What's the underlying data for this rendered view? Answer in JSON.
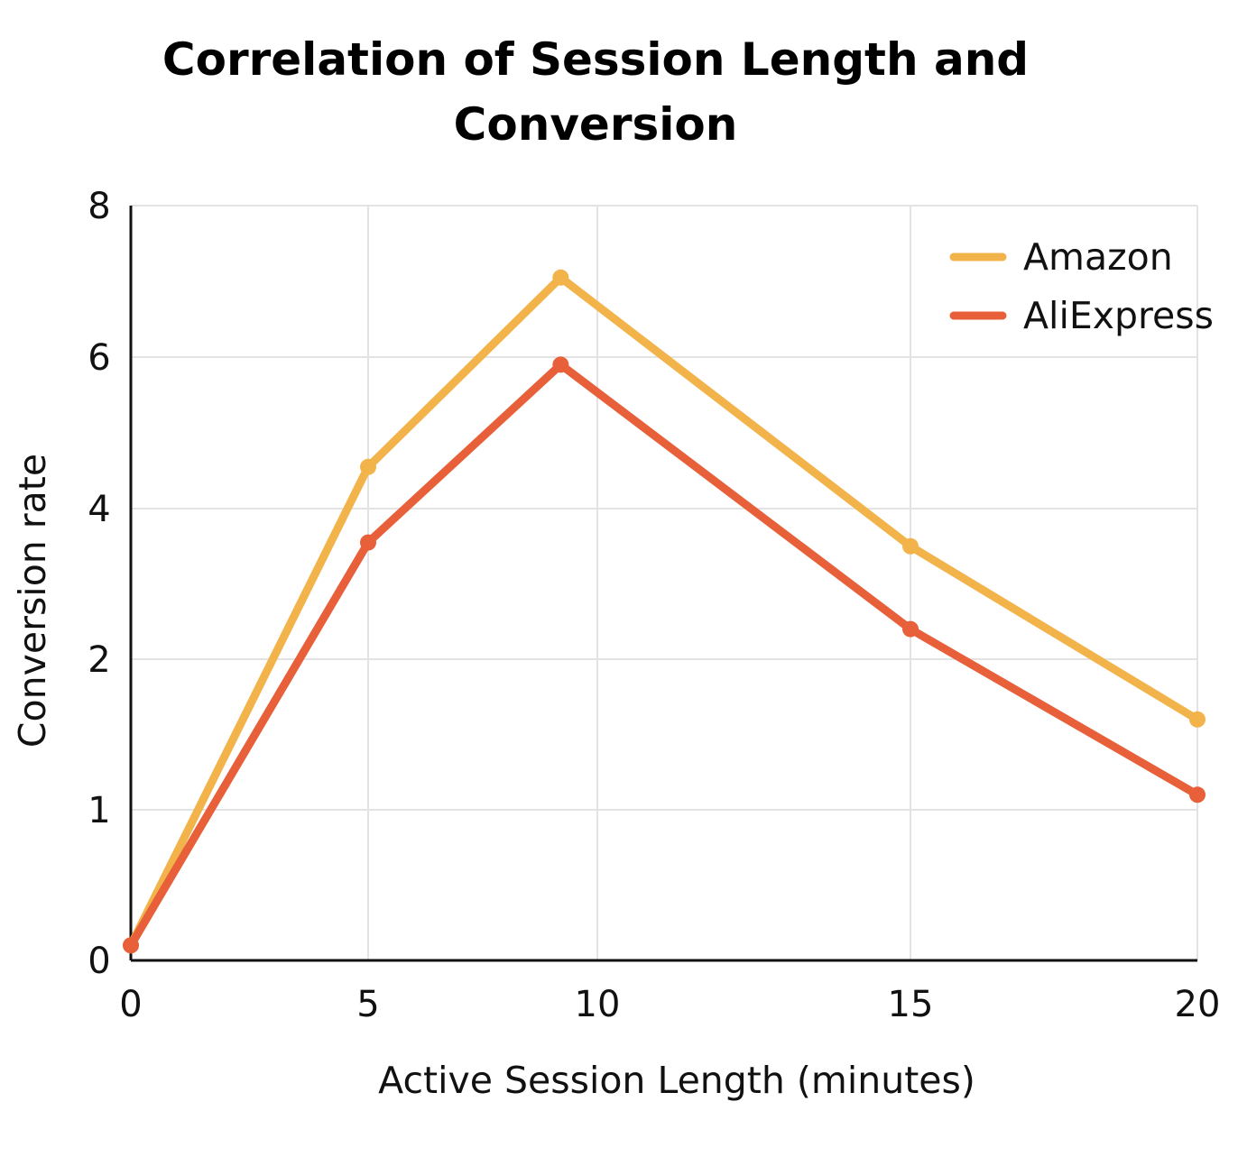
{
  "chart_data": {
    "type": "line",
    "title_lines": [
      "Correlation of Session Length and",
      "Conversion"
    ],
    "xlabel": "Active Session Length (minutes)",
    "ylabel": "Conversion rate",
    "x_ticks": [
      0,
      5,
      10,
      15,
      20
    ],
    "y_ticks": [
      "0",
      "1",
      "2",
      "4",
      "6",
      "8"
    ],
    "y_scale_note": "tick labels are evenly spaced but read 0, 1, 2, 4, 6, 8",
    "xlim": [
      0,
      20
    ],
    "grid": true,
    "legend_position": "top-right",
    "series": [
      {
        "name": "Amazon",
        "color": "#F2B44A",
        "x": [
          0,
          5,
          9.2,
          15,
          20
        ],
        "y": [
          0.1,
          4.55,
          7.05,
          3.5,
          1.6
        ]
      },
      {
        "name": "AliExpress",
        "color": "#E8603A",
        "x": [
          0,
          5,
          9.2,
          15,
          20
        ],
        "y": [
          0.1,
          3.55,
          5.9,
          2.4,
          1.1
        ]
      }
    ]
  }
}
